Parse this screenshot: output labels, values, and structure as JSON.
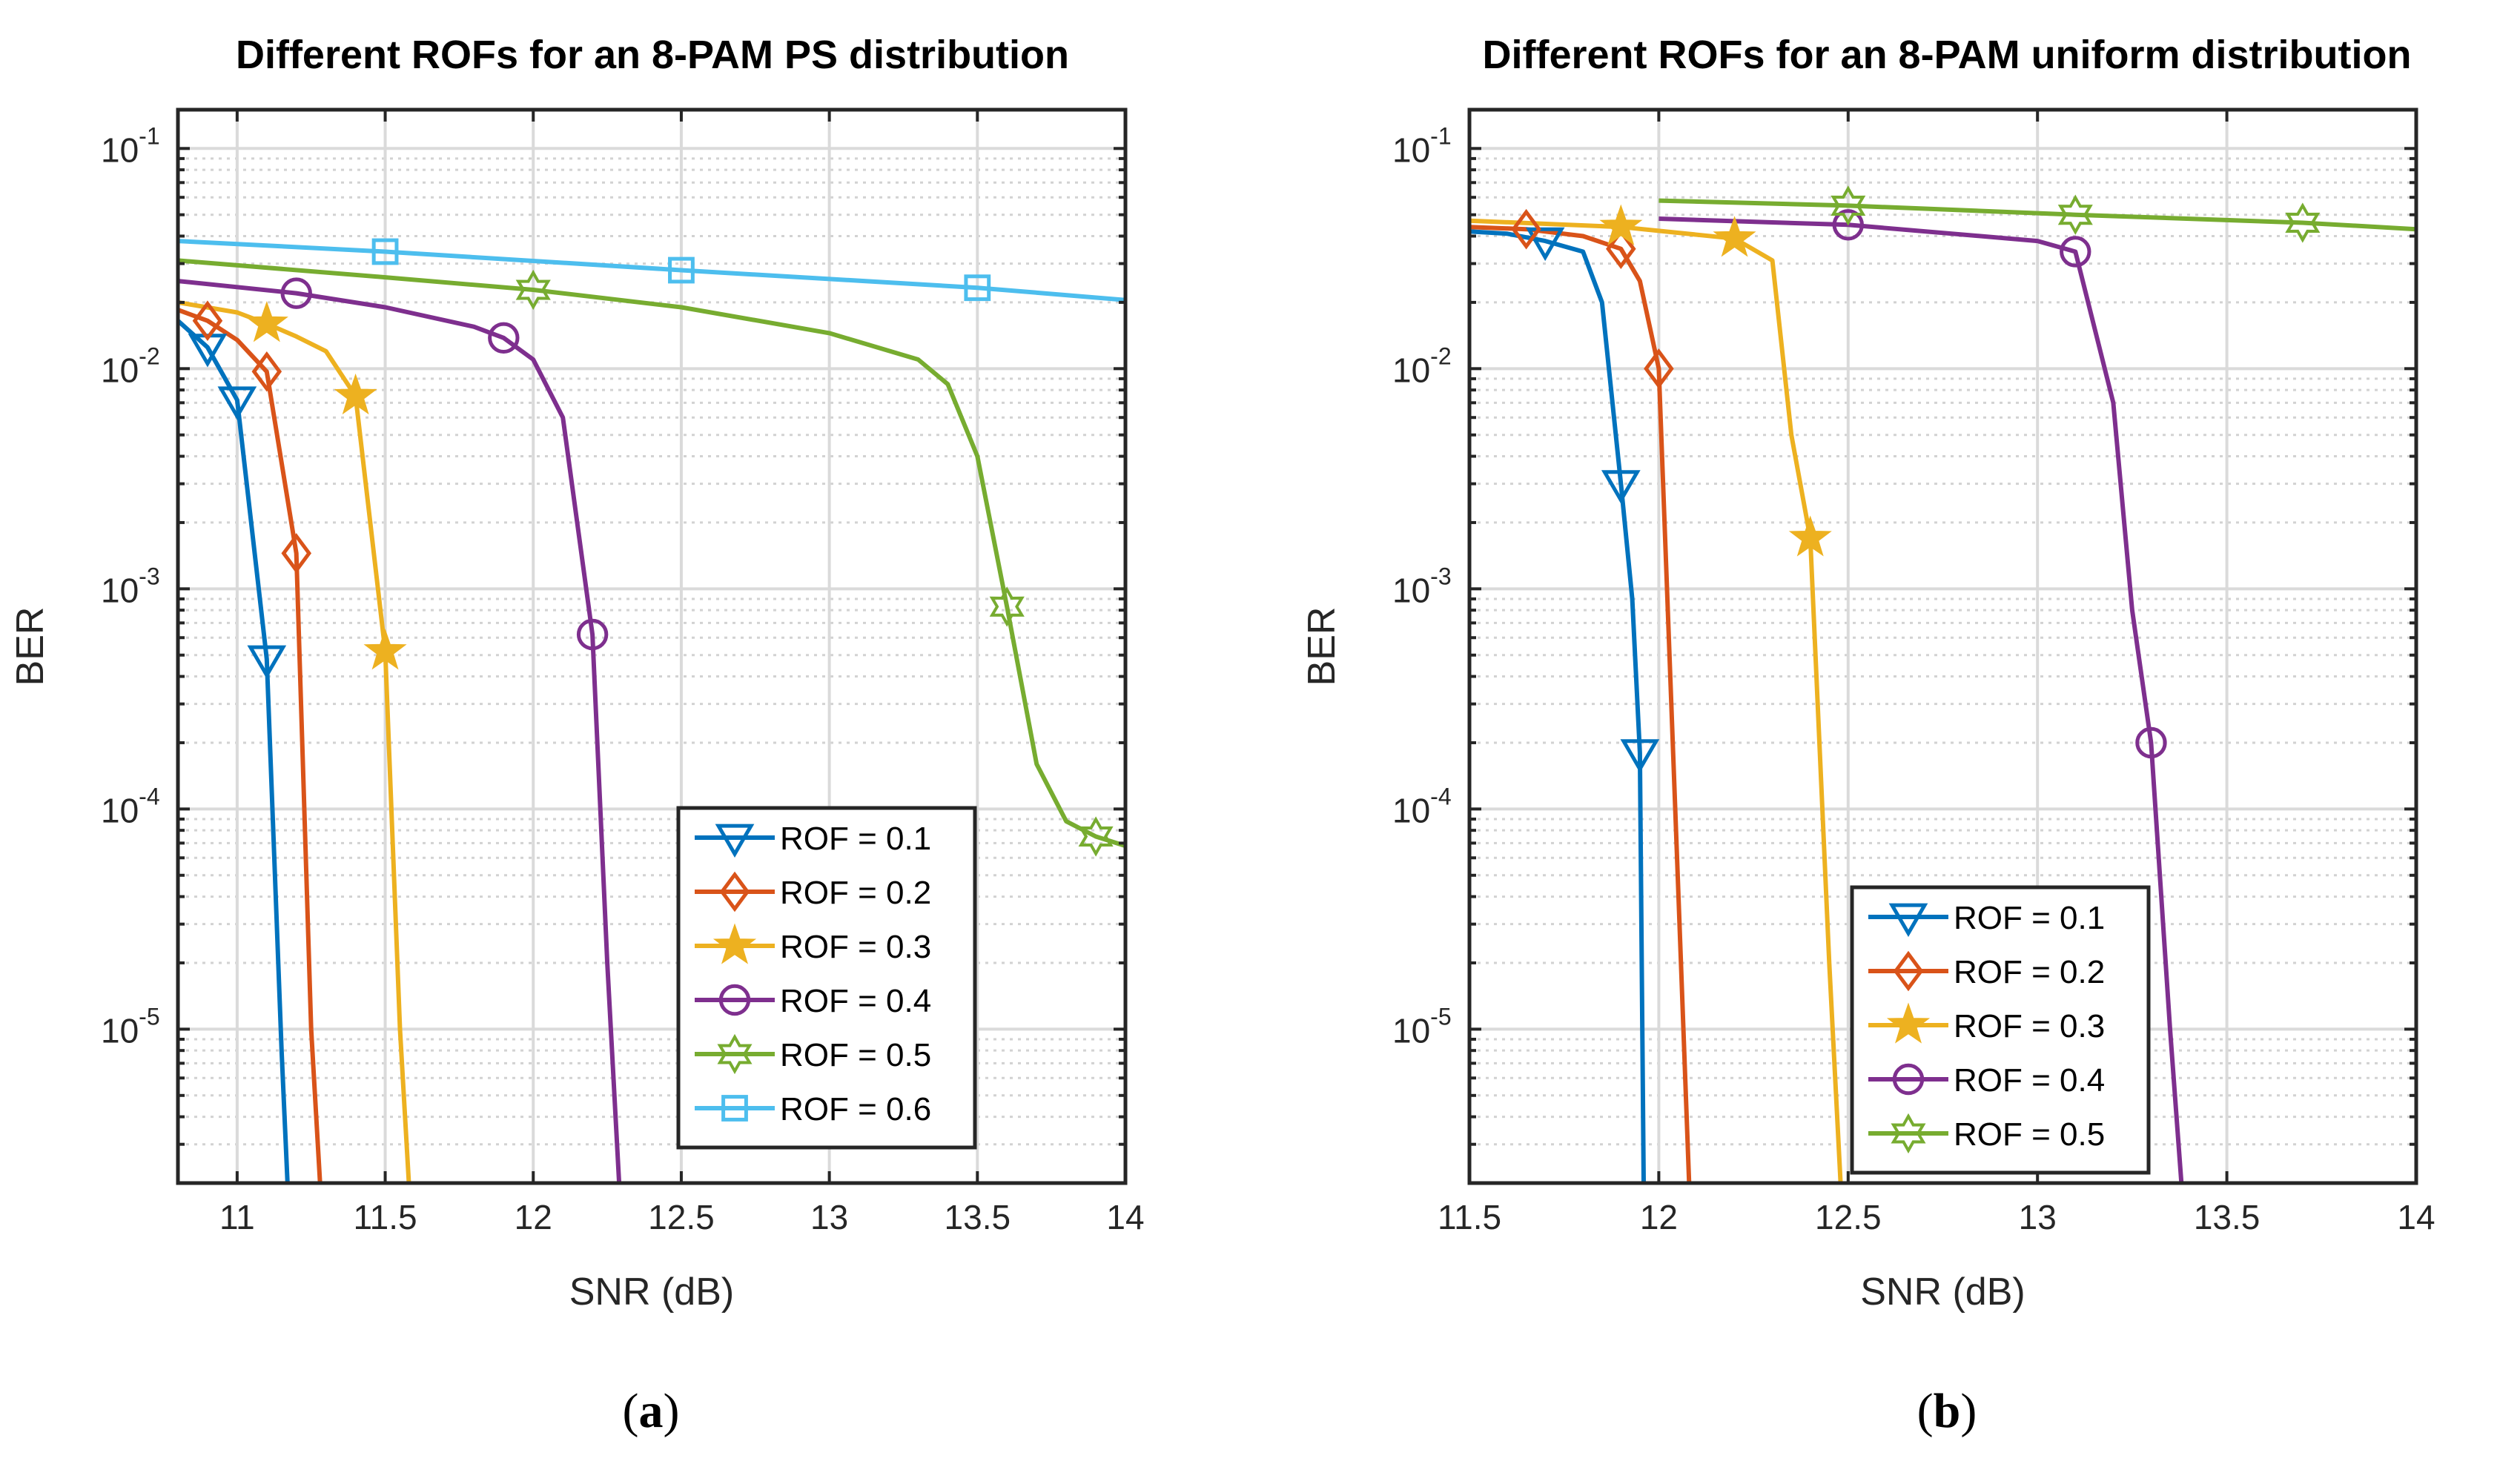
{
  "chart_data": [
    {
      "type": "line",
      "title": "Different ROFs for an 8-PAM PS distribution",
      "xlabel": "SNR (dB)",
      "ylabel": "BER",
      "yscale": "log",
      "xlim": [
        10.8,
        14
      ],
      "ylim": [
        2e-06,
        0.15
      ],
      "xticks": [
        11,
        11.5,
        12,
        12.5,
        13,
        13.5,
        14
      ],
      "xtick_labels": [
        "11",
        "11.5",
        "12",
        "12.5",
        "13",
        "13.5",
        "14"
      ],
      "ytick_exponents": [
        "-1",
        "-2",
        "-3",
        "-4",
        "-5"
      ],
      "grid": true,
      "legend_location": "bottom-right",
      "caption": "a",
      "series": [
        {
          "name": "ROF = 0.1",
          "color": "#0072BD",
          "marker": "triangle-down",
          "x": [
            10.8,
            10.9,
            11.0,
            11.1,
            11.15,
            11.17
          ],
          "y": [
            0.0165,
            0.0125,
            0.0072,
            0.00048,
            8e-06,
            2e-06
          ],
          "marker_x": [
            10.9,
            11.0,
            11.1
          ]
        },
        {
          "name": "ROF = 0.2",
          "color": "#D95319",
          "marker": "diamond",
          "x": [
            10.8,
            10.9,
            11.0,
            11.1,
            11.2,
            11.25,
            11.28
          ],
          "y": [
            0.0185,
            0.0165,
            0.0135,
            0.0097,
            0.00145,
            1e-05,
            2e-06
          ],
          "marker_x": [
            10.9,
            11.1,
            11.2
          ]
        },
        {
          "name": "ROF = 0.3",
          "color": "#EDB120",
          "marker": "star",
          "x": [
            10.8,
            11.0,
            11.1,
            11.2,
            11.3,
            11.4,
            11.5,
            11.55,
            11.58
          ],
          "y": [
            0.02,
            0.018,
            0.016,
            0.014,
            0.012,
            0.0075,
            0.00052,
            1e-05,
            2e-06
          ],
          "marker_x": [
            11.1,
            11.4,
            11.5
          ]
        },
        {
          "name": "ROF = 0.4",
          "color": "#7E2F8E",
          "marker": "circle",
          "x": [
            10.8,
            11.2,
            11.5,
            11.8,
            11.9,
            12.0,
            12.1,
            12.2,
            12.25,
            12.29
          ],
          "y": [
            0.025,
            0.022,
            0.019,
            0.0155,
            0.0138,
            0.011,
            0.006,
            0.00062,
            2e-05,
            2e-06
          ],
          "marker_x": [
            11.2,
            11.9,
            12.2
          ]
        },
        {
          "name": "ROF = 0.5",
          "color": "#77AC30",
          "marker": "hexagram",
          "x": [
            10.8,
            11.5,
            12.0,
            12.5,
            13.0,
            13.3,
            13.4,
            13.5,
            13.6,
            13.7,
            13.8,
            13.9,
            14.0
          ],
          "y": [
            0.031,
            0.026,
            0.0228,
            0.019,
            0.0145,
            0.011,
            0.0085,
            0.004,
            0.00083,
            0.00016,
            8.8e-05,
            7.5e-05,
            6.8e-05
          ],
          "marker_x": [
            12.0,
            13.6,
            13.9
          ]
        },
        {
          "name": "ROF = 0.6",
          "color": "#4DBEEE",
          "marker": "square",
          "x": [
            10.8,
            11.5,
            12.5,
            13.5,
            14.0
          ],
          "y": [
            0.038,
            0.034,
            0.028,
            0.0233,
            0.0205
          ],
          "marker_x": [
            11.5,
            12.5,
            13.5
          ]
        }
      ]
    },
    {
      "type": "line",
      "title": "Different ROFs for an 8-PAM uniform distribution",
      "xlabel": "SNR (dB)",
      "ylabel": "BER",
      "yscale": "log",
      "xlim": [
        11.5,
        14
      ],
      "ylim": [
        2e-06,
        0.15
      ],
      "xticks": [
        11.5,
        12,
        12.5,
        13,
        13.5,
        14
      ],
      "xtick_labels": [
        "11.5",
        "12",
        "12.5",
        "13",
        "13.5",
        "14"
      ],
      "ytick_exponents": [
        "-1",
        "-2",
        "-3",
        "-4",
        "-5"
      ],
      "grid": true,
      "legend_location": "bottom-center",
      "caption": "b",
      "series": [
        {
          "name": "ROF = 0.1",
          "color": "#0072BD",
          "marker": "triangle-down",
          "x": [
            11.5,
            11.6,
            11.7,
            11.8,
            11.85,
            11.9,
            11.93,
            11.95,
            11.96
          ],
          "y": [
            0.042,
            0.041,
            0.038,
            0.034,
            0.02,
            0.003,
            0.0009,
            0.00018,
            2e-06
          ],
          "marker_x": [
            11.7,
            11.9,
            11.95
          ]
        },
        {
          "name": "ROF = 0.2",
          "color": "#D95319",
          "marker": "diamond",
          "x": [
            11.5,
            11.65,
            11.8,
            11.9,
            11.95,
            12.0,
            12.05,
            12.08
          ],
          "y": [
            0.044,
            0.043,
            0.04,
            0.035,
            0.025,
            0.01,
            5e-05,
            2e-06
          ],
          "marker_x": [
            11.65,
            11.9,
            12.0
          ]
        },
        {
          "name": "ROF = 0.3",
          "color": "#EDB120",
          "marker": "star",
          "x": [
            11.5,
            11.9,
            12.2,
            12.3,
            12.35,
            12.4,
            12.45,
            12.48
          ],
          "y": [
            0.047,
            0.044,
            0.039,
            0.031,
            0.005,
            0.0017,
            2e-05,
            2e-06
          ],
          "marker_x": [
            11.9,
            12.2,
            12.4
          ]
        },
        {
          "name": "ROF = 0.4",
          "color": "#7E2F8E",
          "marker": "circle",
          "x": [
            12.0,
            12.5,
            13.0,
            13.1,
            13.2,
            13.25,
            13.3,
            13.35,
            13.38
          ],
          "y": [
            0.048,
            0.045,
            0.038,
            0.034,
            0.007,
            0.0008,
            0.0002,
            1e-05,
            2e-06
          ],
          "marker_x": [
            12.5,
            13.1,
            13.3
          ]
        },
        {
          "name": "ROF = 0.5",
          "color": "#77AC30",
          "marker": "hexagram",
          "x": [
            12.0,
            12.5,
            13.1,
            13.7,
            14.0
          ],
          "y": [
            0.058,
            0.055,
            0.05,
            0.046,
            0.043
          ],
          "marker_x": [
            12.5,
            13.1,
            13.7
          ]
        }
      ]
    }
  ]
}
